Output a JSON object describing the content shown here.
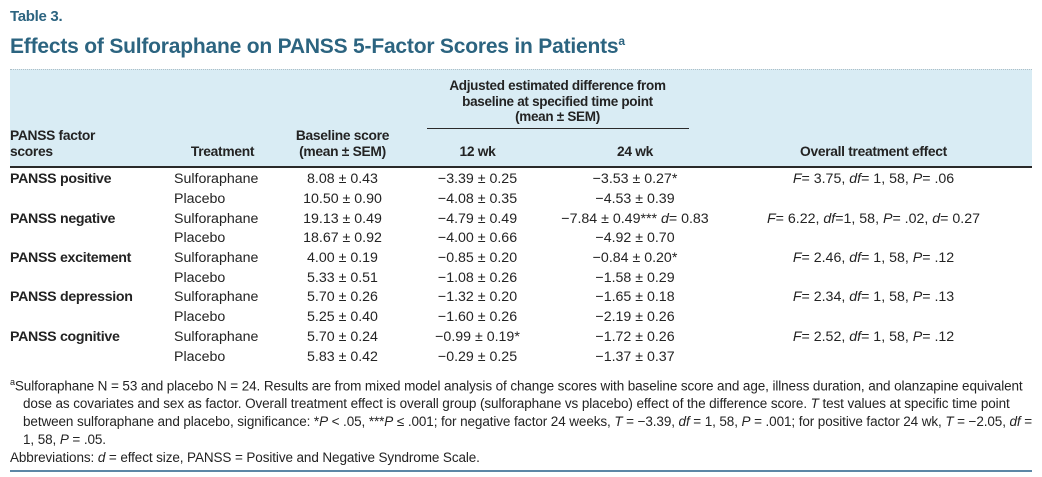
{
  "table_label": "Table 3.",
  "title": "Effects of Sulforaphane on PANSS 5-Factor Scores in Patients",
  "title_superscript": "a",
  "colors": {
    "accent_teal": "#2c6480",
    "header_band": "#d9ecf4",
    "bottom_rule": "#5d87a6",
    "body_text": "#232323"
  },
  "header": {
    "col_factor_line1": "PANSS factor",
    "col_factor_line2": "scores",
    "col_treatment": "Treatment",
    "col_baseline_line1": "Baseline score",
    "col_baseline_line2": "(mean ± SEM)",
    "span_line1": "Adjusted estimated difference from",
    "span_line2": "baseline at specified time point",
    "span_line3": "(mean ± SEM)",
    "col_12wk": "12 wk",
    "col_24wk": "24 wk",
    "col_overall": "Overall treatment effect"
  },
  "rows": [
    {
      "factor": "PANSS positive",
      "treatment": "Sulforaphane",
      "baseline": "8.08 ± 0.43",
      "wk12": "−3.39 ± 0.25",
      "wk24": "−3.53 ± 0.27*",
      "overall": "F= 3.75, df= 1, 58, P= .06"
    },
    {
      "factor": "",
      "treatment": "Placebo",
      "baseline": "10.50 ± 0.90",
      "wk12": "−4.08 ± 0.35",
      "wk24": "−4.53 ± 0.39",
      "overall": ""
    },
    {
      "factor": "PANSS negative",
      "treatment": "Sulforaphane",
      "baseline": "19.13 ± 0.49",
      "wk12": "−4.79 ± 0.49",
      "wk24": "−7.84 ± 0.49*** d= 0.83",
      "overall": "F= 6.22, df=1, 58, P= .02, d= 0.27"
    },
    {
      "factor": "",
      "treatment": "Placebo",
      "baseline": "18.67 ± 0.92",
      "wk12": "−4.00 ± 0.66",
      "wk24": "−4.92 ± 0.70",
      "overall": ""
    },
    {
      "factor": "PANSS excitement",
      "treatment": "Sulforaphane",
      "baseline": "4.00 ± 0.19",
      "wk12": "−0.85 ± 0.20",
      "wk24": "−0.84 ± 0.20*",
      "overall": "F= 2.46, df= 1, 58, P= .12"
    },
    {
      "factor": "",
      "treatment": "Placebo",
      "baseline": "5.33 ± 0.51",
      "wk12": "−1.08 ± 0.26",
      "wk24": "−1.58 ± 0.29",
      "overall": ""
    },
    {
      "factor": "PANSS depression",
      "treatment": "Sulforaphane",
      "baseline": "5.70 ± 0.26",
      "wk12": "−1.32 ± 0.20",
      "wk24": "−1.65 ± 0.18",
      "overall": "F= 2.34, df= 1, 58, P= .13"
    },
    {
      "factor": "",
      "treatment": "Placebo",
      "baseline": "5.25 ± 0.40",
      "wk12": "−1.60 ± 0.26",
      "wk24": "−2.19 ± 0.26",
      "overall": ""
    },
    {
      "factor": "PANSS cognitive",
      "treatment": "Sulforaphane",
      "baseline": "5.70 ± 0.24",
      "wk12": "−0.99 ± 0.19*",
      "wk24": "−1.72 ± 0.26",
      "overall": "F= 2.52, df= 1, 58, P= .12"
    },
    {
      "factor": "",
      "treatment": "Placebo",
      "baseline": "5.83 ± 0.42",
      "wk12": "−0.29 ± 0.25",
      "wk24": "−1.37 ± 0.37",
      "overall": ""
    }
  ],
  "footnotes": {
    "note_superscript": "a",
    "note": "Sulforaphane N = 53 and placebo N = 24. Results are from mixed model analysis of change scores with baseline score and age, illness duration, and olanzapine equivalent dose as covariates and sex as factor. Overall treatment effect is overall group (sulforaphane vs placebo) effect of the difference score. T test values at specific time point between sulforaphane and placebo, significance: *P < .05, ***P ≤ .001; for negative factor 24 weeks, T = −3.39, df = 1, 58, P = .001; for positive factor 24 wk, T = −2.05, df = 1, 58, P = .05.",
    "abbreviations": "Abbreviations: d = effect size, PANSS = Positive and Negative Syndrome Scale."
  }
}
